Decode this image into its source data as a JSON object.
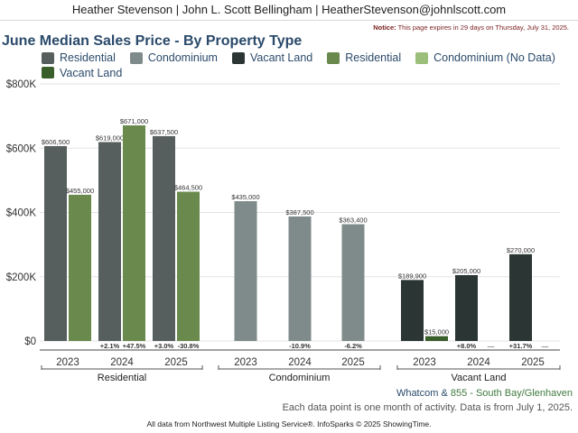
{
  "header": {
    "agents": "Heather Stevenson | John L. Scott Bellingham | HeatherStevenson@johnlscott.com",
    "notice_label": "Notice:",
    "notice_text": " This page expires in 29 days on Thursday, July 31, 2025."
  },
  "title": "June Median Sales Price - By Property Type",
  "legend": [
    {
      "label": "Residential",
      "color": "#565e5e"
    },
    {
      "label": "Condominium",
      "color": "#7f8b8a"
    },
    {
      "label": "Vacant Land",
      "color": "#2b3634"
    },
    {
      "label": "Residential",
      "color": "#6a8a4d"
    },
    {
      "label": "Condominium (No Data)",
      "color": "#9bbf7a"
    },
    {
      "label": "Vacant Land",
      "color": "#3a5e2a"
    }
  ],
  "chart_data": {
    "type": "bar",
    "ylim": [
      0,
      800000
    ],
    "yticks": [
      {
        "value": 0,
        "label": "$0"
      },
      {
        "value": 200000,
        "label": "$200K"
      },
      {
        "value": 400000,
        "label": "$400K"
      },
      {
        "value": 600000,
        "label": "$600K"
      },
      {
        "value": 800000,
        "label": "$800K"
      }
    ],
    "grid": true,
    "groups": [
      {
        "name": "Residential",
        "years": [
          {
            "year": "2023",
            "bars": [
              {
                "value": 606500,
                "label": "$606,500",
                "color": "#565e5e"
              },
              {
                "value": 455000,
                "label": "$455,000",
                "color": "#6a8a4d"
              }
            ],
            "changes": []
          },
          {
            "year": "2024",
            "bars": [
              {
                "value": 619000,
                "label": "$619,000",
                "color": "#565e5e"
              },
              {
                "value": 671000,
                "label": "$671,000",
                "color": "#6a8a4d"
              }
            ],
            "changes": [
              "+2.1%",
              "+47.5%"
            ]
          },
          {
            "year": "2025",
            "bars": [
              {
                "value": 637500,
                "label": "$637,500",
                "color": "#565e5e"
              },
              {
                "value": 464500,
                "label": "$464,500",
                "color": "#6a8a4d"
              }
            ],
            "changes": [
              "+3.0%",
              "-30.8%"
            ]
          }
        ]
      },
      {
        "name": "Condominium",
        "years": [
          {
            "year": "2023",
            "bars": [
              {
                "value": 435000,
                "label": "$435,000",
                "color": "#7f8b8a"
              }
            ],
            "changes": []
          },
          {
            "year": "2024",
            "bars": [
              {
                "value": 387500,
                "label": "$387,500",
                "color": "#7f8b8a"
              }
            ],
            "changes": [
              "-10.9%"
            ]
          },
          {
            "year": "2025",
            "bars": [
              {
                "value": 363400,
                "label": "$363,400",
                "color": "#7f8b8a"
              }
            ],
            "changes": [
              "-6.2%"
            ]
          }
        ]
      },
      {
        "name": "Vacant Land",
        "years": [
          {
            "year": "2023",
            "bars": [
              {
                "value": 189900,
                "label": "$189,900",
                "color": "#2b3634"
              },
              {
                "value": 15000,
                "label": "$15,000",
                "color": "#3a5e2a"
              }
            ],
            "changes": []
          },
          {
            "year": "2024",
            "bars": [
              {
                "value": 205000,
                "label": "$205,000",
                "color": "#2b3634"
              },
              {
                "value": null,
                "label": "",
                "color": "#3a5e2a"
              }
            ],
            "changes": [
              "+8.0%",
              "—"
            ]
          },
          {
            "year": "2025",
            "bars": [
              {
                "value": 270000,
                "label": "$270,000",
                "color": "#2b3634"
              },
              {
                "value": null,
                "label": "",
                "color": "#3a5e2a"
              }
            ],
            "changes": [
              "+31.7%",
              "—"
            ]
          }
        ]
      }
    ]
  },
  "footer": {
    "area_prefix": "Whatcom & ",
    "area_highlight": "855 - South Bay/Glenhaven",
    "data_note": "Each data point is one month of activity. Data is from July 1, 2025.",
    "source": "All data from Northwest Multiple Listing Service®. InfoSparks © 2025 ShowingTime."
  }
}
